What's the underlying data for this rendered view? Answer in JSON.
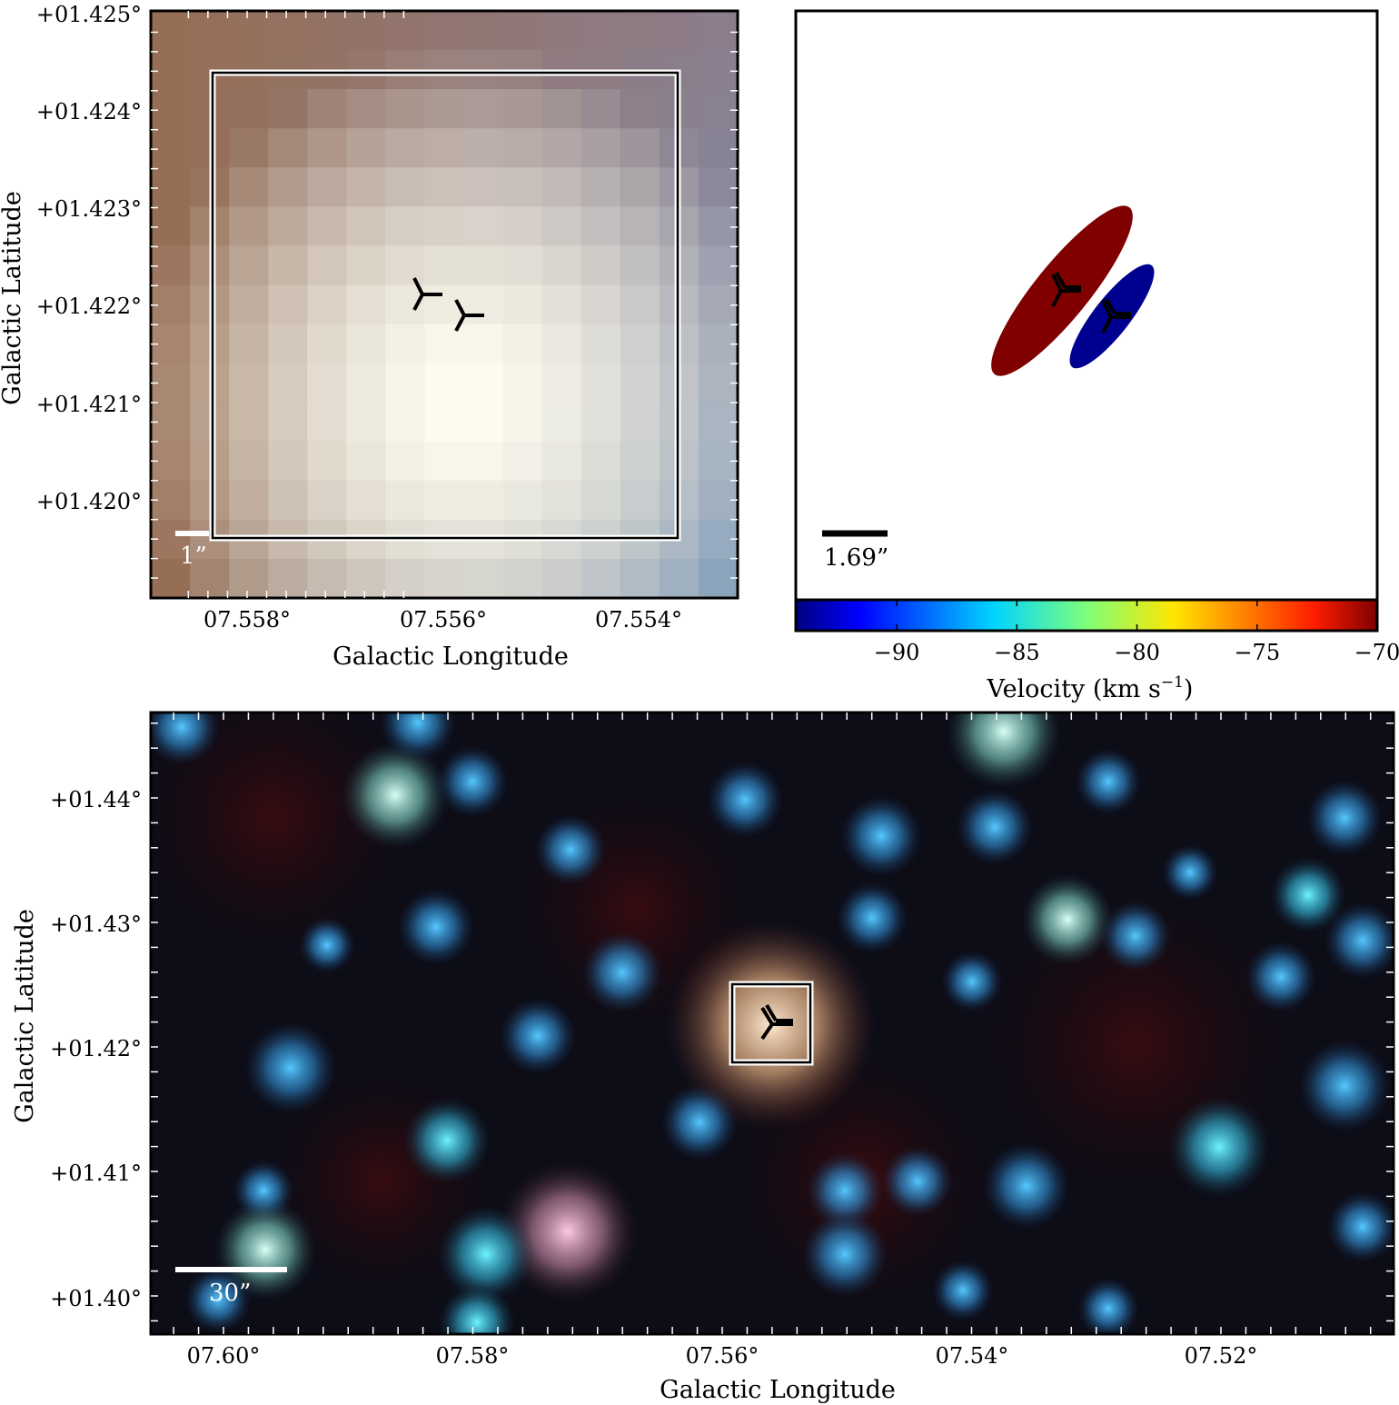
{
  "panel_top_left": {
    "x_ticks": [
      "07.558°",
      "07.556°",
      "07.554°"
    ],
    "y_ticks": [
      "+01.425°",
      "+01.424°",
      "+01.423°",
      "+01.422°",
      "+01.421°",
      "+01.420°"
    ],
    "xlabel": "Galactic Longitude",
    "ylabel": "Galactic Latitude",
    "scale_bar_label": "1”"
  },
  "panel_top_right": {
    "scale_bar_label": "1.69”",
    "colorbar": {
      "label_main": "Velocity (km s",
      "label_sup": "−1",
      "label_close": ")",
      "ticks": [
        "−90",
        "−85",
        "−80",
        "−75",
        "−70"
      ],
      "min": -94.2,
      "max": -70,
      "colormap": "jet"
    },
    "ellipses": [
      {
        "name": "red-component",
        "color": "#800000"
      },
      {
        "name": "blue-component",
        "color": "#000090"
      }
    ]
  },
  "panel_bottom": {
    "x_ticks": [
      "07.60°",
      "07.58°",
      "07.56°",
      "07.54°",
      "07.52°"
    ],
    "y_ticks": [
      "+01.44°",
      "+01.43°",
      "+01.42°",
      "+01.41°",
      "+01.40°"
    ],
    "xlabel": "Galactic Longitude",
    "ylabel": "Galactic Latitude",
    "scale_bar_label": "30”"
  }
}
